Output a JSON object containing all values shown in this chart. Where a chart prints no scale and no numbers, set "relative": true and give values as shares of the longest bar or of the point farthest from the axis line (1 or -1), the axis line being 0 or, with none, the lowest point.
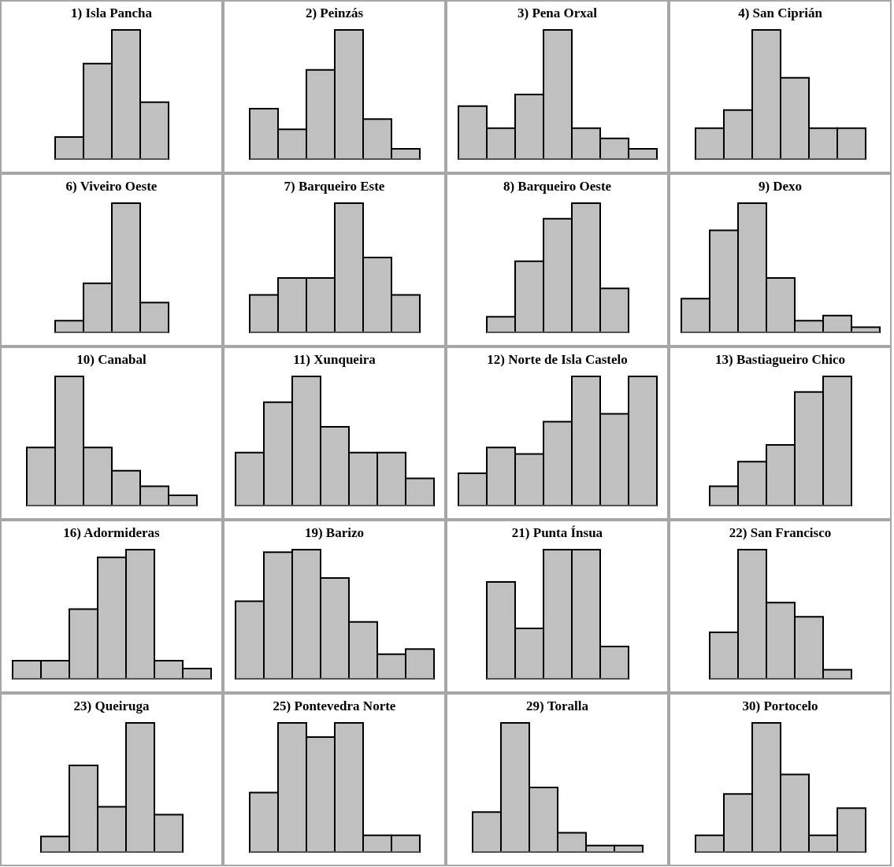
{
  "chart_data": [
    {
      "type": "bar",
      "title": "1) Isla Pancha",
      "categories": [
        null,
        null,
        null,
        null
      ],
      "values": [
        0.17,
        0.74,
        1,
        0.44
      ],
      "color": "#c0c0c0",
      "relative": true,
      "tick_labels": false
    },
    {
      "type": "bar",
      "title": "2) Peinzás",
      "categories": [
        null,
        null,
        null,
        null,
        null,
        null
      ],
      "values": [
        0.39,
        0.23,
        0.69,
        1,
        0.31,
        0.08
      ],
      "color": "#c0c0c0",
      "relative": true,
      "tick_labels": false
    },
    {
      "type": "bar",
      "title": "3) Pena Orxal",
      "categories": [
        null,
        null,
        null,
        null,
        null,
        null,
        null
      ],
      "values": [
        0.41,
        0.24,
        0.5,
        1,
        0.24,
        0.16,
        0.08
      ],
      "color": "#c0c0c0",
      "relative": true,
      "tick_labels": false
    },
    {
      "type": "bar",
      "title": "4) San Ciprián",
      "categories": [
        null,
        null,
        null,
        null,
        null,
        null
      ],
      "values": [
        0.24,
        0.38,
        1,
        0.63,
        0.24,
        0.24
      ],
      "color": "#c0c0c0",
      "relative": true,
      "tick_labels": false
    },
    {
      "type": "bar",
      "title": "6) Viveiro Oeste",
      "categories": [
        null,
        null,
        null,
        null
      ],
      "values": [
        0.09,
        0.38,
        1,
        0.23
      ],
      "color": "#c0c0c0",
      "relative": true,
      "tick_labels": false
    },
    {
      "type": "bar",
      "title": "7) Barqueiro Este",
      "categories": [
        null,
        null,
        null,
        null,
        null,
        null
      ],
      "values": [
        0.29,
        0.42,
        0.42,
        1,
        0.58,
        0.29
      ],
      "color": "#c0c0c0",
      "relative": true,
      "tick_labels": false
    },
    {
      "type": "bar",
      "title": "8) Barqueiro Oeste",
      "categories": [
        null,
        null,
        null,
        null,
        null
      ],
      "values": [
        0.12,
        0.55,
        0.88,
        1,
        0.34
      ],
      "color": "#c0c0c0",
      "relative": true,
      "tick_labels": false
    },
    {
      "type": "bar",
      "title": "9) Dexo",
      "categories": [
        null,
        null,
        null,
        null,
        null,
        null,
        null
      ],
      "values": [
        0.26,
        0.79,
        1,
        0.42,
        0.09,
        0.13,
        0.04
      ],
      "color": "#c0c0c0",
      "relative": true,
      "tick_labels": false
    },
    {
      "type": "bar",
      "title": "10) Canabal",
      "categories": [
        null,
        null,
        null,
        null,
        null,
        null
      ],
      "values": [
        0.45,
        1,
        0.45,
        0.27,
        0.15,
        0.08
      ],
      "color": "#c0c0c0",
      "relative": true,
      "tick_labels": false
    },
    {
      "type": "bar",
      "title": "11) Xunqueira",
      "categories": [
        null,
        null,
        null,
        null,
        null,
        null,
        null
      ],
      "values": [
        0.41,
        0.8,
        1,
        0.61,
        0.41,
        0.41,
        0.21
      ],
      "color": "#c0c0c0",
      "relative": true,
      "tick_labels": false
    },
    {
      "type": "bar",
      "title": "12) Norte de Isla Castelo",
      "categories": [
        null,
        null,
        null,
        null,
        null,
        null,
        null
      ],
      "values": [
        0.25,
        0.45,
        0.4,
        0.65,
        1,
        0.71,
        1
      ],
      "color": "#c0c0c0",
      "relative": true,
      "tick_labels": false
    },
    {
      "type": "bar",
      "title": "13) Bastiagueiro Chico",
      "categories": [
        null,
        null,
        null,
        null,
        null
      ],
      "values": [
        0.15,
        0.34,
        0.47,
        0.88,
        1
      ],
      "color": "#c0c0c0",
      "relative": true,
      "tick_labels": false
    },
    {
      "type": "bar",
      "title": "16) Adormideras",
      "categories": [
        null,
        null,
        null,
        null,
        null,
        null,
        null
      ],
      "values": [
        0.14,
        0.14,
        0.54,
        0.94,
        1,
        0.14,
        0.08
      ],
      "color": "#c0c0c0",
      "relative": true,
      "tick_labels": false
    },
    {
      "type": "bar",
      "title": "19) Barizo",
      "categories": [
        null,
        null,
        null,
        null,
        null,
        null,
        null
      ],
      "values": [
        0.6,
        0.98,
        1,
        0.78,
        0.44,
        0.19,
        0.23
      ],
      "color": "#c0c0c0",
      "relative": true,
      "tick_labels": false
    },
    {
      "type": "bar",
      "title": "21) Punta Ínsua",
      "categories": [
        null,
        null,
        null,
        null,
        null
      ],
      "values": [
        0.75,
        0.39,
        1,
        1,
        0.25
      ],
      "color": "#c0c0c0",
      "relative": true,
      "tick_labels": false
    },
    {
      "type": "bar",
      "title": "22) San Francisco",
      "categories": [
        null,
        null,
        null,
        null,
        null
      ],
      "values": [
        0.36,
        1,
        0.59,
        0.48,
        0.07
      ],
      "color": "#c0c0c0",
      "relative": true,
      "tick_labels": false
    },
    {
      "type": "bar",
      "title": "23) Queiruga",
      "categories": [
        null,
        null,
        null,
        null,
        null
      ],
      "values": [
        0.12,
        0.67,
        0.35,
        1,
        0.29
      ],
      "color": "#c0c0c0",
      "relative": true,
      "tick_labels": false
    },
    {
      "type": "bar",
      "title": "25) Pontevedra Norte",
      "categories": [
        null,
        null,
        null,
        null,
        null,
        null
      ],
      "values": [
        0.46,
        1,
        0.89,
        1,
        0.13,
        0.13
      ],
      "color": "#c0c0c0",
      "relative": true,
      "tick_labels": false
    },
    {
      "type": "bar",
      "title": "29) Toralla",
      "categories": [
        null,
        null,
        null,
        null,
        null,
        null
      ],
      "values": [
        0.31,
        1,
        0.5,
        0.15,
        0.05,
        0.05
      ],
      "color": "#c0c0c0",
      "relative": true,
      "tick_labels": false
    },
    {
      "type": "bar",
      "title": "30) Portocelo",
      "categories": [
        null,
        null,
        null,
        null,
        null,
        null
      ],
      "values": [
        0.13,
        0.45,
        1,
        0.6,
        0.13,
        0.34
      ],
      "color": "#c0c0c0",
      "relative": true,
      "tick_labels": false
    }
  ]
}
